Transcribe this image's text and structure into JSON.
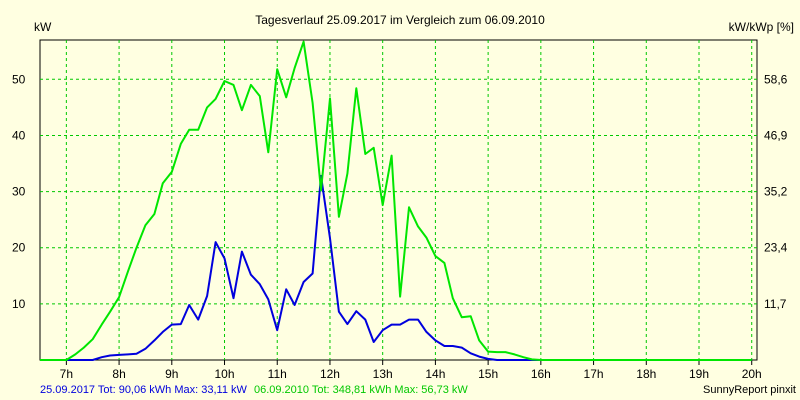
{
  "chart_data": {
    "type": "line",
    "title": "Tagesverlauf 25.09.2017 im Vergleich zum 06.09.2010",
    "ylabel_left": "kW",
    "ylabel_right": "kW/kWp [%]",
    "x_ticks": [
      "7h",
      "8h",
      "9h",
      "10h",
      "11h",
      "12h",
      "13h",
      "14h",
      "15h",
      "16h",
      "17h",
      "18h",
      "19h",
      "20h"
    ],
    "xlim": [
      6.5,
      20.1
    ],
    "ylim": [
      0,
      57
    ],
    "y_ticks_left": [
      10,
      20,
      30,
      40,
      50
    ],
    "y_ticks_right": [
      "11,7",
      "23,4",
      "35,2",
      "46,9",
      "58,6"
    ],
    "grid": true,
    "series": [
      {
        "name": "25.09.2017",
        "color": "#0000dd",
        "x": [
          6.5,
          6.67,
          6.83,
          7.0,
          7.17,
          7.33,
          7.5,
          7.67,
          7.83,
          8.0,
          8.17,
          8.33,
          8.5,
          8.67,
          8.83,
          9.0,
          9.17,
          9.33,
          9.5,
          9.67,
          9.83,
          10.0,
          10.17,
          10.33,
          10.5,
          10.67,
          10.83,
          11.0,
          11.17,
          11.33,
          11.5,
          11.67,
          11.83,
          12.0,
          12.17,
          12.33,
          12.5,
          12.67,
          12.83,
          13.0,
          13.17,
          13.33,
          13.5,
          13.67,
          13.83,
          14.0,
          14.17,
          14.33,
          14.5,
          14.67,
          14.83,
          15.0,
          15.17,
          15.33,
          15.5,
          15.67,
          15.83,
          16.0,
          16.17,
          16.33,
          16.5,
          16.67,
          16.83,
          17.0,
          17.17,
          17.33,
          17.5,
          17.67,
          17.83,
          18.0,
          18.17,
          18.33,
          18.5,
          18.67,
          18.83,
          19.0,
          19.17,
          19.33,
          19.5,
          19.67,
          19.83,
          20.0
        ],
        "values": [
          0,
          0,
          0,
          0,
          0,
          0,
          0,
          0.5,
          0.8,
          0.9,
          1.0,
          1.1,
          2.0,
          3.5,
          5.0,
          6.3,
          6.4,
          9.8,
          7.2,
          11.4,
          21.0,
          18.1,
          11.0,
          19.3,
          15.2,
          13.5,
          10.8,
          5.3,
          12.6,
          9.8,
          13.9,
          15.4,
          32.8,
          21.7,
          8.6,
          6.4,
          8.7,
          7.2,
          3.2,
          5.3,
          6.3,
          6.3,
          7.2,
          7.2,
          5.0,
          3.5,
          2.5,
          2.5,
          2.2,
          1.2,
          0.6,
          0.2,
          0,
          0,
          0,
          0,
          0,
          0,
          0,
          0,
          0,
          0,
          0,
          0,
          0,
          0,
          0,
          0,
          0,
          0,
          0,
          0,
          0,
          0,
          0,
          0,
          0,
          0,
          0,
          0,
          0,
          0
        ]
      },
      {
        "name": "06.09.2010",
        "color": "#00e600",
        "x": [
          6.5,
          6.67,
          6.83,
          7.0,
          7.17,
          7.33,
          7.5,
          7.67,
          7.83,
          8.0,
          8.17,
          8.33,
          8.5,
          8.67,
          8.83,
          9.0,
          9.17,
          9.33,
          9.5,
          9.67,
          9.83,
          10.0,
          10.17,
          10.33,
          10.5,
          10.67,
          10.83,
          11.0,
          11.17,
          11.33,
          11.5,
          11.67,
          11.83,
          12.0,
          12.17,
          12.33,
          12.5,
          12.67,
          12.83,
          13.0,
          13.17,
          13.33,
          13.5,
          13.67,
          13.83,
          14.0,
          14.17,
          14.33,
          14.5,
          14.67,
          14.83,
          15.0,
          15.17,
          15.33,
          15.5,
          15.67,
          15.83,
          16.0,
          16.17,
          16.33,
          16.5,
          16.67,
          16.83,
          17.0,
          17.17,
          17.33,
          17.5,
          17.67,
          17.83,
          18.0,
          18.17,
          18.33,
          18.5,
          18.67,
          18.83,
          19.0,
          19.17,
          19.33,
          19.5,
          19.67,
          19.83,
          20.0
        ],
        "values": [
          0,
          0,
          0,
          0,
          1.0,
          2.2,
          3.7,
          6.3,
          8.6,
          11.2,
          15.8,
          20.0,
          24.0,
          26.0,
          31.5,
          33.5,
          38.5,
          41.0,
          41.0,
          45.0,
          46.5,
          49.7,
          49.0,
          44.5,
          49.0,
          47.0,
          37.0,
          51.8,
          46.8,
          52.0,
          56.7,
          45.8,
          30.2,
          46.6,
          25.5,
          33.2,
          48.4,
          36.7,
          37.8,
          27.6,
          36.4,
          11.3,
          27.2,
          23.8,
          21.8,
          18.5,
          17.3,
          11.0,
          7.6,
          7.8,
          3.5,
          1.5,
          1.4,
          1.4,
          1.0,
          0.5,
          0.1,
          0,
          0,
          0,
          0,
          0,
          0,
          0,
          0,
          0,
          0,
          0,
          0,
          0,
          0,
          0,
          0,
          0,
          0,
          0,
          0,
          0,
          0,
          0,
          0,
          0
        ]
      }
    ]
  },
  "footer": {
    "legend_2017": "25.09.2017 Tot: 90,06 kWh Max: 33,11 kW",
    "legend_2010": "06.09.2010 Tot: 348,81 kWh Max: 56,73 kW",
    "credit": "SunnyReport pinxit"
  },
  "colors": {
    "background": "#ffffe1",
    "grid": "#00c800",
    "series_2017": "#0000dd",
    "series_2010": "#00e600"
  }
}
